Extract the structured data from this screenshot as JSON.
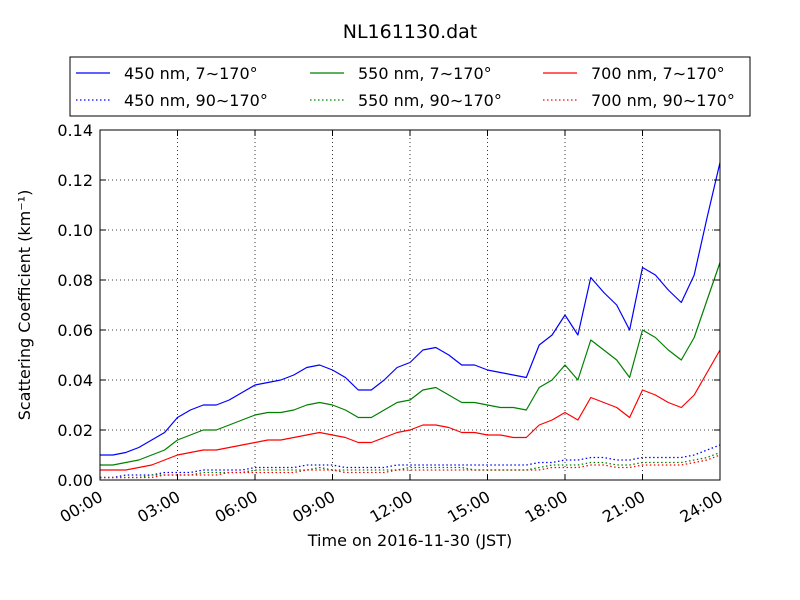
{
  "chart_data": {
    "type": "line",
    "title": "NL161130.dat",
    "xlabel": "Time on 2016-11-30 (JST)",
    "ylabel": "Scattering Coefficient (km⁻¹)",
    "xlim": [
      "00:00",
      "24:00"
    ],
    "ylim": [
      0.0,
      0.14
    ],
    "grid": true,
    "legend_placement": "top, above plot, 3 columns",
    "x_tick_labels": [
      "00:00",
      "03:00",
      "06:00",
      "09:00",
      "12:00",
      "15:00",
      "18:00",
      "21:00",
      "24:00"
    ],
    "y_tick_labels": [
      "0.00",
      "0.02",
      "0.04",
      "0.06",
      "0.08",
      "0.10",
      "0.12",
      "0.14"
    ],
    "x": [
      "00:00",
      "00:30",
      "01:00",
      "01:30",
      "02:00",
      "02:30",
      "03:00",
      "03:30",
      "04:00",
      "04:30",
      "05:00",
      "05:30",
      "06:00",
      "06:30",
      "07:00",
      "07:30",
      "08:00",
      "08:30",
      "09:00",
      "09:30",
      "10:00",
      "10:30",
      "11:00",
      "11:30",
      "12:00",
      "12:30",
      "13:00",
      "13:30",
      "14:00",
      "14:30",
      "15:00",
      "15:30",
      "16:00",
      "16:30",
      "17:00",
      "17:30",
      "18:00",
      "18:30",
      "19:00",
      "19:30",
      "20:00",
      "20:30",
      "21:00",
      "21:30",
      "22:00",
      "22:30",
      "23:00",
      "23:30",
      "24:00"
    ],
    "series": [
      {
        "name": "450 nm, 7∼170°",
        "color": "#0000ff",
        "style": "solid",
        "values": [
          0.01,
          0.01,
          0.011,
          0.013,
          0.016,
          0.019,
          0.025,
          0.028,
          0.03,
          0.03,
          0.032,
          0.035,
          0.038,
          0.039,
          0.04,
          0.042,
          0.045,
          0.046,
          0.044,
          0.041,
          0.036,
          0.036,
          0.04,
          0.045,
          0.047,
          0.052,
          0.053,
          0.05,
          0.046,
          0.046,
          0.044,
          0.043,
          0.042,
          0.041,
          0.054,
          0.058,
          0.066,
          0.058,
          0.081,
          0.075,
          0.07,
          0.06,
          0.085,
          0.082,
          0.076,
          0.071,
          0.082,
          0.105,
          0.127
        ]
      },
      {
        "name": "450 nm, 90∼170°",
        "color": "#0000ff",
        "style": "dotted",
        "values": [
          0.001,
          0.001,
          0.002,
          0.002,
          0.002,
          0.003,
          0.003,
          0.003,
          0.004,
          0.004,
          0.004,
          0.004,
          0.005,
          0.005,
          0.005,
          0.005,
          0.006,
          0.006,
          0.006,
          0.005,
          0.005,
          0.005,
          0.005,
          0.006,
          0.006,
          0.006,
          0.006,
          0.006,
          0.006,
          0.006,
          0.006,
          0.006,
          0.006,
          0.006,
          0.007,
          0.007,
          0.008,
          0.008,
          0.009,
          0.009,
          0.008,
          0.008,
          0.009,
          0.009,
          0.009,
          0.009,
          0.01,
          0.012,
          0.014
        ]
      },
      {
        "name": "550 nm, 7∼170°",
        "color": "#008000",
        "style": "solid",
        "values": [
          0.006,
          0.006,
          0.007,
          0.008,
          0.01,
          0.012,
          0.016,
          0.018,
          0.02,
          0.02,
          0.022,
          0.024,
          0.026,
          0.027,
          0.027,
          0.028,
          0.03,
          0.031,
          0.03,
          0.028,
          0.025,
          0.025,
          0.028,
          0.031,
          0.032,
          0.036,
          0.037,
          0.034,
          0.031,
          0.031,
          0.03,
          0.029,
          0.029,
          0.028,
          0.037,
          0.04,
          0.046,
          0.04,
          0.056,
          0.052,
          0.048,
          0.041,
          0.06,
          0.057,
          0.052,
          0.048,
          0.057,
          0.072,
          0.087
        ]
      },
      {
        "name": "550 nm, 90∼170°",
        "color": "#008000",
        "style": "dotted",
        "values": [
          0.001,
          0.001,
          0.001,
          0.001,
          0.002,
          0.002,
          0.002,
          0.002,
          0.003,
          0.003,
          0.003,
          0.003,
          0.004,
          0.004,
          0.004,
          0.004,
          0.004,
          0.005,
          0.004,
          0.004,
          0.004,
          0.004,
          0.004,
          0.004,
          0.005,
          0.005,
          0.005,
          0.005,
          0.005,
          0.004,
          0.004,
          0.004,
          0.004,
          0.004,
          0.005,
          0.006,
          0.006,
          0.006,
          0.007,
          0.007,
          0.006,
          0.006,
          0.007,
          0.007,
          0.007,
          0.007,
          0.008,
          0.009,
          0.011
        ]
      },
      {
        "name": "700 nm, 7∼170°",
        "color": "#ff0000",
        "style": "solid",
        "values": [
          0.004,
          0.004,
          0.004,
          0.005,
          0.006,
          0.008,
          0.01,
          0.011,
          0.012,
          0.012,
          0.013,
          0.014,
          0.015,
          0.016,
          0.016,
          0.017,
          0.018,
          0.019,
          0.018,
          0.017,
          0.015,
          0.015,
          0.017,
          0.019,
          0.02,
          0.022,
          0.022,
          0.021,
          0.019,
          0.019,
          0.018,
          0.018,
          0.017,
          0.017,
          0.022,
          0.024,
          0.027,
          0.024,
          0.033,
          0.031,
          0.029,
          0.025,
          0.036,
          0.034,
          0.031,
          0.029,
          0.034,
          0.043,
          0.052
        ]
      },
      {
        "name": "700 nm, 90∼170°",
        "color": "#ff0000",
        "style": "dotted",
        "values": [
          0.001,
          0.001,
          0.001,
          0.001,
          0.001,
          0.002,
          0.002,
          0.002,
          0.002,
          0.002,
          0.003,
          0.003,
          0.003,
          0.003,
          0.003,
          0.003,
          0.004,
          0.004,
          0.004,
          0.003,
          0.003,
          0.003,
          0.003,
          0.004,
          0.004,
          0.004,
          0.004,
          0.004,
          0.004,
          0.004,
          0.004,
          0.004,
          0.004,
          0.004,
          0.004,
          0.005,
          0.005,
          0.005,
          0.006,
          0.006,
          0.005,
          0.005,
          0.006,
          0.006,
          0.006,
          0.006,
          0.007,
          0.008,
          0.01
        ]
      }
    ]
  }
}
